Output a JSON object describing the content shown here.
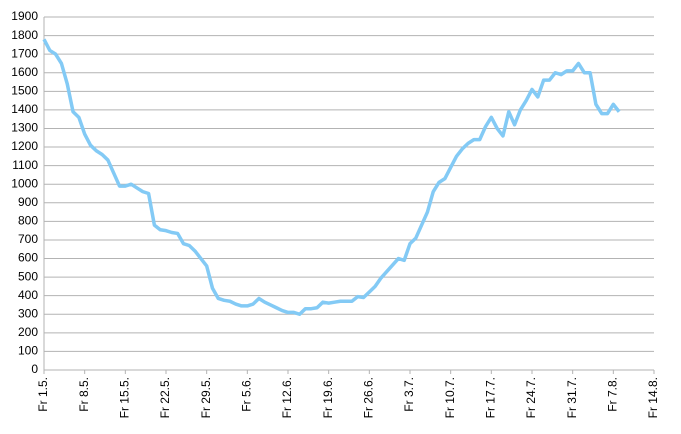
{
  "chart_data": {
    "type": "line",
    "categories": [
      "Fr 1.5.",
      null,
      null,
      null,
      null,
      null,
      null,
      "Fr 8.5.",
      null,
      null,
      null,
      null,
      null,
      null,
      "Fr 15.5.",
      null,
      null,
      null,
      null,
      null,
      null,
      "Fr 22.5.",
      null,
      null,
      null,
      null,
      null,
      null,
      "Fr 29.5.",
      null,
      null,
      null,
      null,
      null,
      null,
      "Fr 5.6.",
      null,
      null,
      null,
      null,
      null,
      null,
      "Fr 12.6.",
      null,
      null,
      null,
      null,
      null,
      null,
      "Fr 19.6.",
      null,
      null,
      null,
      null,
      null,
      null,
      "Fr 26.6.",
      null,
      null,
      null,
      null,
      null,
      null,
      "Fr 3.7.",
      null,
      null,
      null,
      null,
      null,
      null,
      "Fr 10.7.",
      null,
      null,
      null,
      null,
      null,
      null,
      "Fr 17.7.",
      null,
      null,
      null,
      null,
      null,
      null,
      "Fr 24.7.",
      null,
      null,
      null,
      null,
      null,
      null,
      "Fr 31.7.",
      null,
      null,
      null,
      null,
      null,
      null,
      "Fr 7.8.",
      null,
      null,
      null,
      null,
      null,
      null,
      "Fr 14.8."
    ],
    "values": [
      1780,
      1720,
      1700,
      1650,
      1540,
      1390,
      1360,
      1270,
      1210,
      1180,
      1160,
      1130,
      1060,
      990,
      990,
      1000,
      980,
      960,
      950,
      780,
      755,
      750,
      740,
      735,
      680,
      670,
      640,
      600,
      560,
      440,
      385,
      375,
      370,
      355,
      345,
      345,
      355,
      385,
      365,
      350,
      335,
      320,
      310,
      310,
      300,
      330,
      330,
      335,
      365,
      360,
      365,
      370,
      370,
      370,
      395,
      390,
      420,
      450,
      495,
      530,
      565,
      600,
      590,
      680,
      710,
      780,
      850,
      960,
      1010,
      1030,
      1090,
      1150,
      1190,
      1220,
      1240,
      1240,
      1310,
      1360,
      1300,
      1260,
      1390,
      1320,
      1400,
      1450,
      1510,
      1470,
      1560,
      1560,
      1600,
      1590,
      1610,
      1610,
      1650,
      1600,
      1600,
      1430,
      1380,
      1380,
      1430,
      1390,
      null,
      null,
      null,
      null,
      null,
      null
    ],
    "color": "#83caf5",
    "ylim": [
      0,
      1900
    ],
    "yticks": [
      0,
      100,
      200,
      300,
      400,
      500,
      600,
      700,
      800,
      900,
      1000,
      1100,
      1200,
      1300,
      1400,
      1500,
      1600,
      1700,
      1800,
      1900
    ],
    "grid": true
  }
}
